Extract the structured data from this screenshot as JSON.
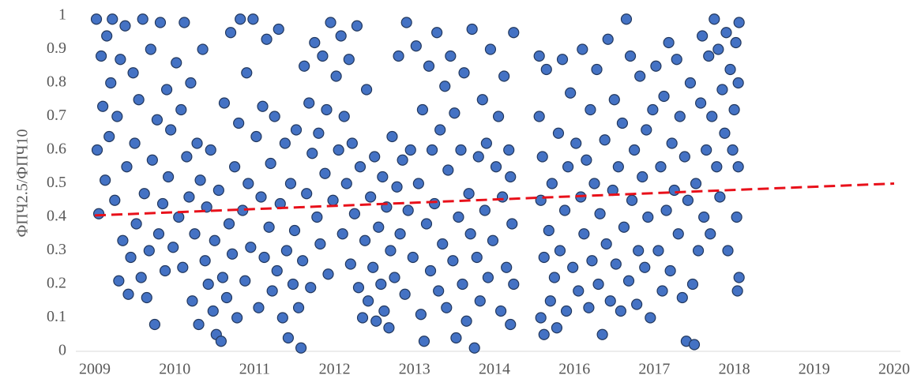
{
  "chart_data": {
    "type": "scatter",
    "y_label": "ФПЧ2.5/ФПЧ10",
    "color": "#4472c4",
    "edgecolor": "#22385e",
    "xlim": [
      2009,
      2019
    ],
    "ylim": [
      0,
      1
    ],
    "xticks": [
      2009,
      2010,
      2011,
      2012,
      2013,
      2014,
      {
        "value": 2015,
        "label": "2016"
      },
      {
        "value": 2016,
        "label": "2017"
      },
      {
        "value": 2017,
        "label": "2018"
      },
      {
        "value": 2018,
        "label": "2019"
      },
      {
        "value": 2019,
        "label": "2020"
      }
    ],
    "yticks": [
      0,
      0.1,
      0.2,
      0.3,
      0.4,
      0.5,
      0.6,
      0.7,
      0.8,
      0.9,
      1
    ],
    "trendline": {
      "x": [
        2009,
        2019
      ],
      "y": [
        0.405,
        0.5
      ],
      "color": "#e8101a"
    },
    "x": [
      2009.02,
      2009.03,
      2009.05,
      2009.08,
      2009.1,
      2009.13,
      2009.15,
      2009.18,
      2009.2,
      2009.22,
      2009.25,
      2009.28,
      2009.3,
      2009.32,
      2009.35,
      2009.38,
      2009.4,
      2009.42,
      2009.45,
      2009.48,
      2009.5,
      2009.52,
      2009.55,
      2009.58,
      2009.6,
      2009.62,
      2009.65,
      2009.68,
      2009.7,
      2009.72,
      2009.75,
      2009.78,
      2009.8,
      2009.82,
      2009.85,
      2009.88,
      2009.9,
      2009.92,
      2009.95,
      2009.98,
      2010.02,
      2010.05,
      2010.08,
      2010.1,
      2010.12,
      2010.15,
      2010.18,
      2010.2,
      2010.22,
      2010.25,
      2010.28,
      2010.3,
      2010.32,
      2010.35,
      2010.38,
      2010.4,
      2010.42,
      2010.45,
      2010.48,
      2010.5,
      2010.52,
      2010.55,
      2010.58,
      2010.6,
      2010.62,
      2010.65,
      2010.68,
      2010.7,
      2010.72,
      2010.75,
      2010.78,
      2010.8,
      2010.82,
      2010.85,
      2010.88,
      2010.9,
      2010.92,
      2010.95,
      2010.98,
      2011.02,
      2011.05,
      2011.08,
      2011.1,
      2011.12,
      2011.15,
      2011.18,
      2011.2,
      2011.22,
      2011.25,
      2011.28,
      2011.3,
      2011.32,
      2011.35,
      2011.38,
      2011.4,
      2011.42,
      2011.45,
      2011.48,
      2011.5,
      2011.52,
      2011.55,
      2011.58,
      2011.6,
      2011.62,
      2011.65,
      2011.68,
      2011.7,
      2011.72,
      2011.75,
      2011.78,
      2011.8,
      2011.82,
      2011.85,
      2011.88,
      2011.9,
      2011.92,
      2011.95,
      2011.98,
      2012.02,
      2012.05,
      2012.08,
      2012.1,
      2012.12,
      2012.15,
      2012.18,
      2012.2,
      2012.22,
      2012.25,
      2012.28,
      2012.3,
      2012.32,
      2012.35,
      2012.38,
      2012.4,
      2012.42,
      2012.45,
      2012.48,
      2012.5,
      2012.52,
      2012.55,
      2012.58,
      2012.6,
      2012.62,
      2012.65,
      2012.68,
      2012.7,
      2012.72,
      2012.75,
      2012.78,
      2012.8,
      2012.82,
      2012.85,
      2012.88,
      2012.9,
      2012.92,
      2012.95,
      2012.98,
      2013.02,
      2013.05,
      2013.08,
      2013.1,
      2013.12,
      2013.15,
      2013.18,
      2013.2,
      2013.22,
      2013.25,
      2013.28,
      2013.3,
      2013.32,
      2013.35,
      2013.38,
      2013.4,
      2013.42,
      2013.45,
      2013.48,
      2013.5,
      2013.52,
      2013.55,
      2013.58,
      2013.6,
      2013.62,
      2013.65,
      2013.68,
      2013.7,
      2013.72,
      2013.75,
      2013.78,
      2013.8,
      2013.82,
      2013.85,
      2013.88,
      2013.9,
      2013.92,
      2013.95,
      2013.98,
      2014.02,
      2014.05,
      2014.08,
      2014.1,
      2014.12,
      2014.15,
      2014.18,
      2014.2,
      2014.22,
      2014.24,
      2014.24,
      2014.2,
      2014.56,
      2014.56,
      2014.58,
      2014.58,
      2014.6,
      2014.62,
      2014.62,
      2014.65,
      2014.68,
      2014.7,
      2014.72,
      2014.75,
      2014.78,
      2014.8,
      2014.82,
      2014.85,
      2014.88,
      2014.9,
      2014.92,
      2014.95,
      2014.98,
      2015.02,
      2015.05,
      2015.08,
      2015.1,
      2015.12,
      2015.15,
      2015.18,
      2015.2,
      2015.22,
      2015.25,
      2015.28,
      2015.3,
      2015.32,
      2015.35,
      2015.38,
      2015.4,
      2015.42,
      2015.45,
      2015.48,
      2015.5,
      2015.52,
      2015.55,
      2015.58,
      2015.6,
      2015.62,
      2015.65,
      2015.68,
      2015.7,
      2015.72,
      2015.75,
      2015.78,
      2015.8,
      2015.82,
      2015.85,
      2015.88,
      2015.9,
      2015.92,
      2015.95,
      2015.98,
      2016.02,
      2016.05,
      2016.08,
      2016.1,
      2016.12,
      2016.15,
      2016.18,
      2016.2,
      2016.22,
      2016.25,
      2016.28,
      2016.3,
      2016.32,
      2016.35,
      2016.38,
      2016.4,
      2016.42,
      2016.45,
      2016.48,
      2016.5,
      2016.52,
      2016.55,
      2016.58,
      2016.6,
      2016.62,
      2016.65,
      2016.68,
      2016.7,
      2016.72,
      2016.75,
      2016.78,
      2016.8,
      2016.82,
      2016.85,
      2016.88,
      2016.9,
      2016.92,
      2016.95,
      2016.98,
      2017.0,
      2017.02,
      2017.03,
      2017.04,
      2017.05,
      2017.05,
      2017.06,
      2017.06
    ],
    "values": [
      0.99,
      0.6,
      0.41,
      0.88,
      0.73,
      0.51,
      0.94,
      0.64,
      0.8,
      0.99,
      0.45,
      0.7,
      0.21,
      0.87,
      0.33,
      0.97,
      0.55,
      0.17,
      0.28,
      0.83,
      0.62,
      0.38,
      0.75,
      0.22,
      0.99,
      0.47,
      0.16,
      0.3,
      0.9,
      0.57,
      0.08,
      0.69,
      0.35,
      0.98,
      0.44,
      0.24,
      0.78,
      0.52,
      0.66,
      0.31,
      0.86,
      0.4,
      0.72,
      0.25,
      0.98,
      0.58,
      0.46,
      0.8,
      0.15,
      0.35,
      0.62,
      0.08,
      0.51,
      0.9,
      0.27,
      0.43,
      0.2,
      0.6,
      0.12,
      0.33,
      0.05,
      0.48,
      0.03,
      0.22,
      0.74,
      0.16,
      0.38,
      0.95,
      0.29,
      0.55,
      0.1,
      0.68,
      0.99,
      0.42,
      0.21,
      0.83,
      0.5,
      0.31,
      0.99,
      0.64,
      0.13,
      0.46,
      0.73,
      0.28,
      0.93,
      0.37,
      0.56,
      0.18,
      0.7,
      0.24,
      0.96,
      0.44,
      0.1,
      0.62,
      0.3,
      0.04,
      0.5,
      0.2,
      0.36,
      0.66,
      0.13,
      0.01,
      0.27,
      0.85,
      0.47,
      0.74,
      0.19,
      0.59,
      0.92,
      0.4,
      0.65,
      0.32,
      0.88,
      0.53,
      0.72,
      0.23,
      0.98,
      0.45,
      0.82,
      0.6,
      0.94,
      0.35,
      0.7,
      0.5,
      0.87,
      0.26,
      0.62,
      0.41,
      0.97,
      0.19,
      0.55,
      0.1,
      0.33,
      0.78,
      0.15,
      0.46,
      0.25,
      0.58,
      0.09,
      0.37,
      0.2,
      0.52,
      0.12,
      0.43,
      0.07,
      0.3,
      0.64,
      0.22,
      0.49,
      0.88,
      0.35,
      0.57,
      0.17,
      0.98,
      0.42,
      0.6,
      0.28,
      0.91,
      0.5,
      0.11,
      0.72,
      0.03,
      0.38,
      0.85,
      0.24,
      0.6,
      0.44,
      0.95,
      0.18,
      0.66,
      0.32,
      0.79,
      0.13,
      0.54,
      0.88,
      0.27,
      0.71,
      0.04,
      0.4,
      0.6,
      0.2,
      0.83,
      0.09,
      0.47,
      0.35,
      0.96,
      0.01,
      0.28,
      0.58,
      0.15,
      0.75,
      0.42,
      0.62,
      0.22,
      0.9,
      0.33,
      0.55,
      0.7,
      0.12,
      0.46,
      0.82,
      0.25,
      0.6,
      0.08,
      0.38,
      0.2,
      0.95,
      0.52,
      0.88,
      0.7,
      0.45,
      0.1,
      0.58,
      0.28,
      0.05,
      0.84,
      0.36,
      0.15,
      0.5,
      0.22,
      0.07,
      0.65,
      0.3,
      0.87,
      0.42,
      0.12,
      0.55,
      0.77,
      0.25,
      0.62,
      0.18,
      0.46,
      0.9,
      0.35,
      0.57,
      0.13,
      0.72,
      0.27,
      0.5,
      0.84,
      0.2,
      0.41,
      0.05,
      0.63,
      0.32,
      0.93,
      0.15,
      0.48,
      0.75,
      0.26,
      0.55,
      0.12,
      0.68,
      0.37,
      0.99,
      0.21,
      0.88,
      0.45,
      0.6,
      0.14,
      0.3,
      0.82,
      0.52,
      0.25,
      0.66,
      0.4,
      0.1,
      0.72,
      0.85,
      0.3,
      0.55,
      0.18,
      0.76,
      0.42,
      0.92,
      0.24,
      0.62,
      0.48,
      0.87,
      0.35,
      0.7,
      0.16,
      0.58,
      0.03,
      0.45,
      0.8,
      0.2,
      0.02,
      0.5,
      0.3,
      0.74,
      0.94,
      0.4,
      0.6,
      0.88,
      0.35,
      0.7,
      0.99,
      0.55,
      0.9,
      0.46,
      0.78,
      0.65,
      0.95,
      0.3,
      0.84,
      0.6,
      0.72,
      0.92,
      0.4,
      0.18,
      0.8,
      0.55,
      0.98,
      0.22
    ]
  }
}
